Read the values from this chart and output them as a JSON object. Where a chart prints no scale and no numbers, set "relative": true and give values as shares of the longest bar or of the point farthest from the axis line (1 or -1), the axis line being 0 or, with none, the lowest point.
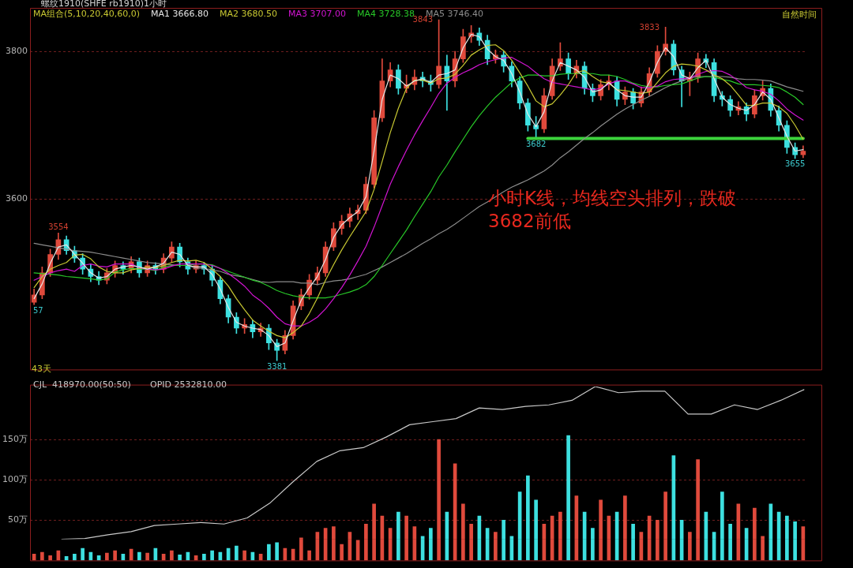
{
  "chart_data": [
    {
      "type": "candlestick",
      "title": "螺纹1910(SHFE rb1910)1小时",
      "legend_title": "MA组合(5,10,20,40,60,0)",
      "grid": "y",
      "tick_labels": "y",
      "categories": [
        null,
        null,
        null,
        null,
        null,
        null,
        null,
        null,
        null,
        null,
        null,
        null,
        null,
        null,
        null,
        null,
        null,
        null,
        null,
        null,
        null,
        null,
        null,
        null,
        null,
        null,
        null,
        null,
        null,
        null,
        null,
        null,
        null,
        null,
        null,
        null,
        null,
        null,
        null,
        null,
        null,
        null,
        null,
        null,
        null,
        null,
        null,
        null,
        null,
        null,
        null,
        null,
        null,
        null,
        null,
        null,
        null,
        null,
        null,
        null,
        null,
        null,
        null,
        null,
        null,
        null,
        null,
        null,
        null,
        null,
        null,
        null,
        null,
        null,
        null,
        null,
        null,
        null,
        null,
        null,
        null,
        null,
        null,
        null,
        null,
        null,
        null,
        null,
        null,
        null,
        null,
        null,
        null,
        null,
        null,
        null
      ],
      "ylim": [
        3369,
        3859
      ],
      "yticks": [
        3600,
        3800
      ],
      "ohlc": [
        [
          3460,
          3478,
          3457,
          3470
        ],
        [
          3470,
          3508,
          3465,
          3500
        ],
        [
          3500,
          3532,
          3495,
          3525
        ],
        [
          3525,
          3554,
          3518,
          3545
        ],
        [
          3545,
          3550,
          3525,
          3530
        ],
        [
          3530,
          3536,
          3514,
          3520
        ],
        [
          3520,
          3526,
          3498,
          3505
        ],
        [
          3505,
          3512,
          3488,
          3495
        ],
        [
          3495,
          3502,
          3484,
          3490
        ],
        [
          3490,
          3506,
          3485,
          3500
        ],
        [
          3500,
          3516,
          3494,
          3510
        ],
        [
          3510,
          3515,
          3498,
          3505
        ],
        [
          3505,
          3522,
          3500,
          3515
        ],
        [
          3515,
          3520,
          3494,
          3500
        ],
        [
          3500,
          3516,
          3495,
          3510
        ],
        [
          3510,
          3514,
          3498,
          3505
        ],
        [
          3505,
          3526,
          3500,
          3520
        ],
        [
          3520,
          3542,
          3514,
          3535
        ],
        [
          3535,
          3540,
          3508,
          3515
        ],
        [
          3515,
          3520,
          3498,
          3505
        ],
        [
          3505,
          3516,
          3500,
          3510
        ],
        [
          3510,
          3514,
          3498,
          3505
        ],
        [
          3505,
          3510,
          3482,
          3490
        ],
        [
          3490,
          3495,
          3458,
          3465
        ],
        [
          3465,
          3470,
          3432,
          3440
        ],
        [
          3440,
          3446,
          3418,
          3425
        ],
        [
          3425,
          3438,
          3418,
          3430
        ],
        [
          3430,
          3436,
          3412,
          3420
        ],
        [
          3420,
          3432,
          3414,
          3425
        ],
        [
          3425,
          3430,
          3396,
          3405
        ],
        [
          3405,
          3410,
          3381,
          3395
        ],
        [
          3395,
          3422,
          3390,
          3415
        ],
        [
          3415,
          3462,
          3410,
          3455
        ],
        [
          3455,
          3478,
          3450,
          3470
        ],
        [
          3470,
          3498,
          3464,
          3490
        ],
        [
          3490,
          3508,
          3484,
          3500
        ],
        [
          3500,
          3542,
          3495,
          3535
        ],
        [
          3535,
          3568,
          3530,
          3560
        ],
        [
          3560,
          3578,
          3552,
          3570
        ],
        [
          3570,
          3588,
          3562,
          3580
        ],
        [
          3580,
          3592,
          3572,
          3585
        ],
        [
          3585,
          3630,
          3580,
          3620
        ],
        [
          3620,
          3720,
          3615,
          3710
        ],
        [
          3710,
          3790,
          3705,
          3760
        ],
        [
          3760,
          3785,
          3752,
          3775
        ],
        [
          3775,
          3782,
          3742,
          3750
        ],
        [
          3750,
          3768,
          3744,
          3755
        ],
        [
          3755,
          3775,
          3748,
          3765
        ],
        [
          3765,
          3772,
          3752,
          3760
        ],
        [
          3760,
          3768,
          3746,
          3755
        ],
        [
          3755,
          3843,
          3750,
          3780
        ],
        [
          3780,
          3795,
          3720,
          3760
        ],
        [
          3760,
          3800,
          3752,
          3790
        ],
        [
          3790,
          3830,
          3785,
          3820
        ],
        [
          3820,
          3835,
          3812,
          3825
        ],
        [
          3825,
          3832,
          3808,
          3815
        ],
        [
          3815,
          3822,
          3782,
          3790
        ],
        [
          3790,
          3802,
          3784,
          3795
        ],
        [
          3795,
          3800,
          3772,
          3780
        ],
        [
          3780,
          3786,
          3752,
          3760
        ],
        [
          3760,
          3766,
          3722,
          3730
        ],
        [
          3730,
          3736,
          3692,
          3700
        ],
        [
          3700,
          3712,
          3682,
          3695
        ],
        [
          3695,
          3750,
          3690,
          3740
        ],
        [
          3740,
          3790,
          3735,
          3780
        ],
        [
          3780,
          3812,
          3774,
          3790
        ],
        [
          3790,
          3798,
          3762,
          3770
        ],
        [
          3770,
          3788,
          3764,
          3780
        ],
        [
          3780,
          3786,
          3742,
          3750
        ],
        [
          3750,
          3756,
          3732,
          3740
        ],
        [
          3740,
          3762,
          3734,
          3755
        ],
        [
          3755,
          3768,
          3748,
          3760
        ],
        [
          3760,
          3766,
          3726,
          3735
        ],
        [
          3735,
          3752,
          3728,
          3745
        ],
        [
          3745,
          3750,
          3722,
          3730
        ],
        [
          3730,
          3752,
          3725,
          3745
        ],
        [
          3745,
          3778,
          3740,
          3770
        ],
        [
          3770,
          3808,
          3765,
          3800
        ],
        [
          3800,
          3833,
          3795,
          3810
        ],
        [
          3810,
          3815,
          3768,
          3775
        ],
        [
          3775,
          3780,
          3725,
          3760
        ],
        [
          3760,
          3772,
          3740,
          3765
        ],
        [
          3765,
          3798,
          3758,
          3790
        ],
        [
          3790,
          3796,
          3778,
          3785
        ],
        [
          3785,
          3790,
          3732,
          3740
        ],
        [
          3740,
          3746,
          3726,
          3735
        ],
        [
          3735,
          3740,
          3712,
          3720
        ],
        [
          3720,
          3732,
          3714,
          3725
        ],
        [
          3725,
          3730,
          3706,
          3715
        ],
        [
          3715,
          3748,
          3710,
          3740
        ],
        [
          3740,
          3760,
          3734,
          3750
        ],
        [
          3750,
          3756,
          3712,
          3720
        ],
        [
          3720,
          3726,
          3692,
          3700
        ],
        [
          3700,
          3706,
          3662,
          3670
        ],
        [
          3670,
          3676,
          3655,
          3660
        ],
        [
          3660,
          3672,
          3656,
          3665
        ]
      ],
      "colors": [
        "#e04a3c",
        "#e04a3c",
        "#e04a3c",
        "#e04a3c",
        "#3de0e0",
        "#3de0e0",
        "#3de0e0",
        "#3de0e0",
        "#3de0e0",
        "#e04a3c",
        "#e04a3c",
        "#3de0e0",
        "#e04a3c",
        "#3de0e0",
        "#e04a3c",
        "#3de0e0",
        "#e04a3c",
        "#e04a3c",
        "#3de0e0",
        "#3de0e0",
        "#e04a3c",
        "#3de0e0",
        "#3de0e0",
        "#3de0e0",
        "#3de0e0",
        "#3de0e0",
        "#e04a3c",
        "#3de0e0",
        "#e04a3c",
        "#3de0e0",
        "#3de0e0",
        "#e04a3c",
        "#e04a3c",
        "#e04a3c",
        "#e04a3c",
        "#e04a3c",
        "#e04a3c",
        "#e04a3c",
        "#e04a3c",
        "#e04a3c",
        "#e04a3c",
        "#e04a3c",
        "#e04a3c",
        "#e04a3c",
        "#e04a3c",
        "#3de0e0",
        "#e04a3c",
        "#e04a3c",
        "#3de0e0",
        "#3de0e0",
        "#e04a3c",
        "#3de0e0",
        "#e04a3c",
        "#e04a3c",
        "#e04a3c",
        "#3de0e0",
        "#3de0e0",
        "#e04a3c",
        "#3de0e0",
        "#3de0e0",
        "#3de0e0",
        "#3de0e0",
        "#3de0e0",
        "#e04a3c",
        "#e04a3c",
        "#e04a3c",
        "#3de0e0",
        "#e04a3c",
        "#3de0e0",
        "#3de0e0",
        "#e04a3c",
        "#e04a3c",
        "#3de0e0",
        "#e04a3c",
        "#3de0e0",
        "#e04a3c",
        "#e04a3c",
        "#e04a3c",
        "#e04a3c",
        "#3de0e0",
        "#3de0e0",
        "#e04a3c",
        "#e04a3c",
        "#3de0e0",
        "#3de0e0",
        "#3de0e0",
        "#3de0e0",
        "#e04a3c",
        "#3de0e0",
        "#e04a3c",
        "#e04a3c",
        "#3de0e0",
        "#3de0e0",
        "#3de0e0",
        "#3de0e0",
        "#e04a3c"
      ],
      "series": [
        {
          "name": "MA1 3666.80",
          "type": "line",
          "color": "#e6e6e6",
          "values": [
            3465,
            3485,
            3513,
            3535,
            3538,
            3525,
            3513,
            3500,
            3493,
            3495,
            3505,
            3508,
            3510,
            3508,
            3505,
            3508,
            3513,
            3528,
            3525,
            3510,
            3508,
            3508,
            3498,
            3478,
            3453,
            3433,
            3428,
            3425,
            3423,
            3415,
            3400,
            3405,
            3435,
            3463,
            3480,
            3495,
            3518,
            3548,
            3565,
            3575,
            3583,
            3603,
            3665,
            3735,
            3768,
            3763,
            3753,
            3760,
            3763,
            3758,
            3768,
            3770,
            3775,
            3805,
            3823,
            3820,
            3803,
            3793,
            3788,
            3770,
            3745,
            3715,
            3698,
            3718,
            3760,
            3785,
            3780,
            3775,
            3765,
            3745,
            3748,
            3758,
            3748,
            3740,
            3738,
            3738,
            3758,
            3785,
            3805,
            3793,
            3768,
            3763,
            3778,
            3788,
            3763,
            3738,
            3728,
            3723,
            3720,
            3728,
            3745,
            3735,
            3710,
            3685,
            3665,
            3667
          ]
        },
        {
          "name": "MA2 3680.50",
          "type": "line",
          "color": "#c8c832",
          "values": [
            3480,
            3495,
            3505,
            3510,
            3514,
            3524,
            3525,
            3519,
            3508,
            3502,
            3500,
            3500,
            3504,
            3506,
            3508,
            3507,
            3510,
            3514,
            3517,
            3516,
            3517,
            3514,
            3505,
            3495,
            3482,
            3465,
            3450,
            3436,
            3428,
            3421,
            3415,
            3412,
            3419,
            3428,
            3445,
            3466,
            3490,
            3511,
            3531,
            3549,
            3566,
            3583,
            3613,
            3651,
            3690,
            3723,
            3750,
            3761,
            3761,
            3757,
            3763,
            3764,
            3769,
            3781,
            3795,
            3802,
            3808,
            3809,
            3801,
            3788,
            3771,
            3753,
            3733,
            3725,
            3729,
            3741,
            3755,
            3772,
            3774,
            3766,
            3759,
            3757,
            3748,
            3747,
            3745,
            3743,
            3745,
            3758,
            3771,
            3780,
            3783,
            3782,
            3780,
            3775,
            3768,
            3763,
            3754,
            3741,
            3727,
            3727,
            3730,
            3730,
            3725,
            3716,
            3700,
            3681
          ]
        },
        {
          "name": "MA3 3707.00",
          "type": "line",
          "color": "#d214d2",
          "values": [
            3490,
            3495,
            3500,
            3503,
            3505,
            3502,
            3510,
            3512,
            3509,
            3508,
            3512,
            3512,
            3512,
            3507,
            3505,
            3504,
            3505,
            3509,
            3512,
            3512,
            3512,
            3512,
            3510,
            3506,
            3499,
            3491,
            3482,
            3470,
            3462,
            3452,
            3440,
            3431,
            3428,
            3428,
            3433,
            3440,
            3451,
            3465,
            3480,
            3497,
            3516,
            3536,
            3562,
            3591,
            3620,
            3644,
            3666,
            3687,
            3706,
            3724,
            3743,
            3757,
            3765,
            3771,
            3776,
            3782,
            3786,
            3789,
            3791,
            3792,
            3786,
            3780,
            3771,
            3763,
            3758,
            3756,
            3754,
            3752,
            3750,
            3748,
            3750,
            3756,
            3760,
            3760,
            3756,
            3751,
            3751,
            3753,
            3759,
            3762,
            3763,
            3764,
            3769,
            3773,
            3774,
            3773,
            3768,
            3760,
            3751,
            3748,
            3746,
            3742,
            3733,
            3722,
            3714,
            3707
          ]
        },
        {
          "name": "MA4 3728.38",
          "type": "line",
          "color": "#28c828",
          "values": [
            3500,
            3499,
            3498,
            3497,
            3495,
            3494,
            3493,
            3492,
            3490,
            3492,
            3501,
            3504,
            3506,
            3505,
            3505,
            3503,
            3508,
            3510,
            3510,
            3510,
            3512,
            3512,
            3511,
            3506,
            3502,
            3498,
            3494,
            3490,
            3487,
            3482,
            3476,
            3472,
            3469,
            3467,
            3466,
            3466,
            3466,
            3468,
            3471,
            3474,
            3478,
            3484,
            3495,
            3510,
            3526,
            3542,
            3558,
            3576,
            3593,
            3610,
            3630,
            3646,
            3664,
            3681,
            3698,
            3713,
            3726,
            3738,
            3748,
            3758,
            3764,
            3768,
            3768,
            3767,
            3767,
            3769,
            3770,
            3770,
            3770,
            3770,
            3768,
            3768,
            3766,
            3762,
            3757,
            3754,
            3752,
            3752,
            3754,
            3755,
            3756,
            3760,
            3764,
            3766,
            3765,
            3762,
            3760,
            3756,
            3755,
            3755,
            3754,
            3753,
            3751,
            3745,
            3738,
            3728
          ]
        },
        {
          "name": "MA5 3746.40",
          "type": "line",
          "color": "#8c8c8c",
          "values": [
            3540,
            3538,
            3536,
            3534,
            3532,
            3530,
            3529,
            3528,
            3526,
            3524,
            3522,
            3520,
            3518,
            3516,
            3514,
            3513,
            3512,
            3511,
            3510,
            3510,
            3506,
            3506,
            3504,
            3502,
            3498,
            3496,
            3494,
            3491,
            3488,
            3487,
            3488,
            3488,
            3488,
            3486,
            3486,
            3484,
            3487,
            3489,
            3490,
            3492,
            3495,
            3498,
            3503,
            3508,
            3514,
            3520,
            3526,
            3533,
            3540,
            3546,
            3553,
            3559,
            3566,
            3574,
            3582,
            3590,
            3596,
            3603,
            3610,
            3616,
            3621,
            3626,
            3632,
            3638,
            3646,
            3656,
            3664,
            3673,
            3682,
            3690,
            3699,
            3707,
            3715,
            3722,
            3728,
            3734,
            3739,
            3745,
            3751,
            3756,
            3760,
            3764,
            3766,
            3766,
            3766,
            3766,
            3765,
            3763,
            3762,
            3762,
            3761,
            3760,
            3756,
            3752,
            3749,
            3746
          ]
        },
        {
          "type": "line",
          "color": "#3cd23c",
          "values": [
            null,
            null,
            null,
            null,
            null,
            null,
            null,
            null,
            null,
            null,
            null,
            null,
            null,
            null,
            null,
            null,
            null,
            null,
            null,
            null,
            null,
            null,
            null,
            null,
            null,
            null,
            null,
            null,
            null,
            null,
            null,
            null,
            null,
            null,
            null,
            null,
            null,
            null,
            null,
            null,
            null,
            null,
            null,
            null,
            null,
            null,
            null,
            null,
            null,
            null,
            null,
            null,
            null,
            null,
            null,
            null,
            null,
            null,
            null,
            null,
            null,
            3682,
            3682,
            3682,
            3682,
            3682,
            3682,
            3682,
            3682,
            3682,
            3682,
            3682,
            3682,
            3682,
            3682,
            3682,
            3682,
            3682,
            3682,
            3682,
            3682,
            3682,
            3682,
            3682,
            3682,
            3682,
            3682,
            3682,
            3682,
            3682,
            3682,
            3682,
            3682,
            3682,
            3682,
            3682
          ]
        }
      ],
      "annotations": [
        "自然时间",
        "43天",
        "小时K线，均线空头排列，跌破3682前低",
        "3843",
        "3833",
        {
          "text": "3554",
          "y": 3554
        },
        {
          "text": "3381",
          "y": 3381
        },
        {
          "text": "3682",
          "y": 3682
        },
        {
          "text": "3655",
          "y": 3655
        },
        {
          "text": "57",
          "y": 3457
        }
      ]
    },
    {
      "type": "bar",
      "grid": "y",
      "tick_labels": "y",
      "categories": [
        null,
        null,
        null,
        null,
        null,
        null,
        null,
        null,
        null,
        null,
        null,
        null,
        null,
        null,
        null,
        null,
        null,
        null,
        null,
        null,
        null,
        null,
        null,
        null,
        null,
        null,
        null,
        null,
        null,
        null,
        null,
        null,
        null,
        null,
        null,
        null,
        null,
        null,
        null,
        null,
        null,
        null,
        null,
        null,
        null,
        null,
        null,
        null,
        null,
        null,
        null,
        null,
        null,
        null,
        null,
        null,
        null,
        null,
        null,
        null,
        null,
        null,
        null,
        null,
        null,
        null,
        null,
        null,
        null,
        null,
        null,
        null,
        null,
        null,
        null,
        null,
        null,
        null,
        null,
        null,
        null,
        null,
        null,
        null,
        null,
        null,
        null,
        null,
        null,
        null,
        null,
        null,
        null,
        null,
        null,
        null
      ],
      "ylim": [
        0,
        218
      ],
      "yticks": [
        {
          "value": 50,
          "label": "50万"
        },
        {
          "value": 100,
          "label": "100万"
        },
        {
          "value": 150,
          "label": "150万"
        }
      ],
      "series": [
        {
          "name": "CJL  418970.00(50:50)",
          "values": [
            8,
            10,
            6,
            12,
            5,
            8,
            15,
            10,
            6,
            9,
            12,
            8,
            14,
            10,
            9,
            15,
            8,
            12,
            7,
            10,
            6,
            8,
            12,
            10,
            15,
            18,
            12,
            10,
            8,
            20,
            22,
            15,
            14,
            28,
            12,
            35,
            40,
            42,
            20,
            35,
            25,
            45,
            70,
            55,
            40,
            60,
            55,
            42,
            30,
            40,
            150,
            60,
            120,
            70,
            45,
            55,
            40,
            35,
            50,
            30,
            85,
            105,
            75,
            45,
            55,
            60,
            155,
            80,
            60,
            40,
            75,
            55,
            60,
            80,
            45,
            35,
            55,
            50,
            85,
            130,
            50,
            35,
            125,
            60,
            35,
            85,
            45,
            70,
            40,
            65,
            30,
            70,
            60,
            55,
            48,
            42
          ],
          "colors": [
            "#e04a3c",
            "#e04a3c",
            "#e04a3c",
            "#e04a3c",
            "#3de0e0",
            "#3de0e0",
            "#3de0e0",
            "#3de0e0",
            "#3de0e0",
            "#e04a3c",
            "#e04a3c",
            "#3de0e0",
            "#e04a3c",
            "#3de0e0",
            "#e04a3c",
            "#3de0e0",
            "#e04a3c",
            "#e04a3c",
            "#3de0e0",
            "#3de0e0",
            "#e04a3c",
            "#3de0e0",
            "#3de0e0",
            "#3de0e0",
            "#3de0e0",
            "#3de0e0",
            "#e04a3c",
            "#3de0e0",
            "#e04a3c",
            "#3de0e0",
            "#3de0e0",
            "#e04a3c",
            "#e04a3c",
            "#e04a3c",
            "#e04a3c",
            "#e04a3c",
            "#e04a3c",
            "#e04a3c",
            "#e04a3c",
            "#e04a3c",
            "#e04a3c",
            "#e04a3c",
            "#e04a3c",
            "#e04a3c",
            "#e04a3c",
            "#3de0e0",
            "#e04a3c",
            "#e04a3c",
            "#3de0e0",
            "#3de0e0",
            "#e04a3c",
            "#3de0e0",
            "#e04a3c",
            "#e04a3c",
            "#e04a3c",
            "#3de0e0",
            "#3de0e0",
            "#e04a3c",
            "#3de0e0",
            "#3de0e0",
            "#3de0e0",
            "#3de0e0",
            "#3de0e0",
            "#e04a3c",
            "#e04a3c",
            "#e04a3c",
            "#3de0e0",
            "#e04a3c",
            "#3de0e0",
            "#3de0e0",
            "#e04a3c",
            "#e04a3c",
            "#3de0e0",
            "#e04a3c",
            "#3de0e0",
            "#e04a3c",
            "#e04a3c",
            "#e04a3c",
            "#e04a3c",
            "#3de0e0",
            "#3de0e0",
            "#e04a3c",
            "#e04a3c",
            "#3de0e0",
            "#3de0e0",
            "#3de0e0",
            "#3de0e0",
            "#e04a3c",
            "#3de0e0",
            "#e04a3c",
            "#e04a3c",
            "#3de0e0",
            "#3de0e0",
            "#3de0e0",
            "#3de0e0",
            "#e04a3c"
          ]
        }
      ]
    },
    {
      "type": "line",
      "relative": true,
      "categories": [
        null,
        null,
        null,
        null,
        null,
        null,
        null,
        null,
        null,
        null,
        null,
        null,
        null,
        null,
        null,
        null,
        null,
        null,
        null,
        null,
        null,
        null,
        null,
        null,
        null,
        null,
        null,
        null,
        null,
        null,
        null,
        null,
        null
      ],
      "series": [
        {
          "name": "OPID 2532810.00",
          "color": "#c8c8c8",
          "values": [
            0,
            0.005,
            0.03,
            0.05,
            0.09,
            0.1,
            0.11,
            0.1,
            0.14,
            0.24,
            0.38,
            0.51,
            0.58,
            0.6,
            0.67,
            0.75,
            0.77,
            0.79,
            0.86,
            0.85,
            0.87,
            0.88,
            0.91,
            1,
            0.96,
            0.97,
            0.97,
            0.82,
            0.82,
            0.88,
            0.85,
            0.91,
            0.98
          ]
        }
      ]
    }
  ]
}
